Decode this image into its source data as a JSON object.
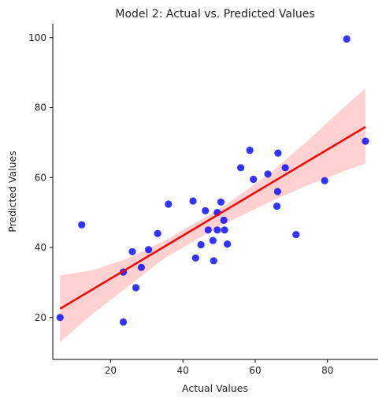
{
  "chart_data": {
    "type": "scatter",
    "title": "Model 2: Actual vs. Predicted Values",
    "xlabel": "Actual Values",
    "ylabel": "Predicted Values",
    "xlim": [
      4,
      94
    ],
    "ylim": [
      8,
      104
    ],
    "xticks": [
      20,
      40,
      60,
      80
    ],
    "yticks": [
      20,
      40,
      60,
      80,
      100
    ],
    "grid": false,
    "colors": {
      "points": "#0000ff",
      "line": "#ff0000",
      "band": "#ffb3b3"
    },
    "points": [
      {
        "x": 6.0,
        "y": 20.0
      },
      {
        "x": 12.0,
        "y": 46.5
      },
      {
        "x": 23.5,
        "y": 33.0
      },
      {
        "x": 23.5,
        "y": 18.7
      },
      {
        "x": 26.0,
        "y": 38.8
      },
      {
        "x": 27.0,
        "y": 28.5
      },
      {
        "x": 28.5,
        "y": 34.3
      },
      {
        "x": 30.5,
        "y": 39.4
      },
      {
        "x": 33.0,
        "y": 44.0
      },
      {
        "x": 36.0,
        "y": 52.4
      },
      {
        "x": 42.8,
        "y": 53.3
      },
      {
        "x": 43.5,
        "y": 37.0
      },
      {
        "x": 45.0,
        "y": 40.8
      },
      {
        "x": 46.2,
        "y": 50.5
      },
      {
        "x": 47.0,
        "y": 45.0
      },
      {
        "x": 48.3,
        "y": 42.0
      },
      {
        "x": 48.5,
        "y": 36.2
      },
      {
        "x": 49.5,
        "y": 45.0
      },
      {
        "x": 49.5,
        "y": 50.0
      },
      {
        "x": 50.5,
        "y": 53.0
      },
      {
        "x": 51.3,
        "y": 47.8
      },
      {
        "x": 51.5,
        "y": 45.0
      },
      {
        "x": 52.3,
        "y": 41.0
      },
      {
        "x": 56.0,
        "y": 62.8
      },
      {
        "x": 58.5,
        "y": 67.8
      },
      {
        "x": 59.5,
        "y": 59.5
      },
      {
        "x": 63.5,
        "y": 61.0
      },
      {
        "x": 66.0,
        "y": 51.8
      },
      {
        "x": 66.2,
        "y": 56.0
      },
      {
        "x": 66.3,
        "y": 67.0
      },
      {
        "x": 68.3,
        "y": 62.8
      },
      {
        "x": 71.3,
        "y": 43.7
      },
      {
        "x": 79.2,
        "y": 59.1
      },
      {
        "x": 85.3,
        "y": 99.6
      },
      {
        "x": 90.5,
        "y": 70.4
      }
    ],
    "regression": {
      "x0": 6.0,
      "y0": 22.5,
      "x1": 90.5,
      "y1": 74.5
    },
    "confidence_band": {
      "x": [
        6,
        15,
        25,
        35,
        45,
        50,
        55,
        65,
        75,
        85,
        90.5
      ],
      "lower": [
        13,
        21,
        29,
        37,
        43,
        46,
        48.5,
        53.5,
        58,
        62,
        64
      ],
      "upper": [
        32,
        33.5,
        37,
        42,
        48,
        51,
        54.5,
        62,
        71,
        80.5,
        85.5
      ]
    }
  }
}
